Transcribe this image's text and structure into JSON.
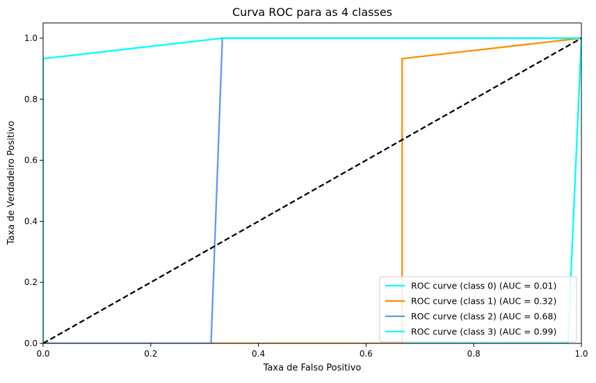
{
  "chart_data": {
    "type": "line",
    "title": "Curva ROC para as 4 classes",
    "xlabel": "Taxa de Falso Positivo",
    "ylabel": "Taxa de Verdadeiro Positivo",
    "xlim": [
      0,
      1.0
    ],
    "ylim": [
      0,
      1.05
    ],
    "xticks": [
      0.0,
      0.2,
      0.4,
      0.6,
      0.8,
      1.0
    ],
    "xtick_labels": [
      "0.0",
      "0.2",
      "0.4",
      "0.6",
      "0.8",
      "1.0"
    ],
    "yticks": [
      0.0,
      0.2,
      0.4,
      0.6,
      0.8,
      1.0
    ],
    "ytick_labels": [
      "0.0",
      "0.2",
      "0.4",
      "0.6",
      "0.8",
      "1.0"
    ],
    "grid": false,
    "legend_position": "bottom-right",
    "series": [
      {
        "name": "ROC curve (class 0) (AUC = 0.01)",
        "color": "#00ffff",
        "x": [
          0.0,
          0.0,
          0.975,
          0.975,
          1.0
        ],
        "y": [
          0.0,
          0.0,
          0.0,
          0.0,
          1.0
        ]
      },
      {
        "name": "ROC curve (class 1) (AUC = 0.32)",
        "color": "#ff8c00",
        "x": [
          0.0,
          0.667,
          0.667,
          1.0
        ],
        "y": [
          0.0,
          0.0,
          0.933,
          1.0
        ]
      },
      {
        "name": "ROC curve (class 2) (AUC = 0.68)",
        "color": "#6495ed",
        "x": [
          0.0,
          0.312,
          0.333,
          1.0
        ],
        "y": [
          0.0,
          0.0,
          1.0,
          1.0
        ]
      },
      {
        "name": "ROC curve (class 3) (AUC = 0.99)",
        "color": "#00ffff",
        "x": [
          0.0,
          0.0,
          0.333,
          1.0
        ],
        "y": [
          0.0,
          0.933,
          1.0,
          1.0
        ]
      }
    ],
    "reference_line": {
      "color": "#000000",
      "style": "dashed",
      "x": [
        0.0,
        1.0
      ],
      "y": [
        0.0,
        1.0
      ]
    }
  }
}
